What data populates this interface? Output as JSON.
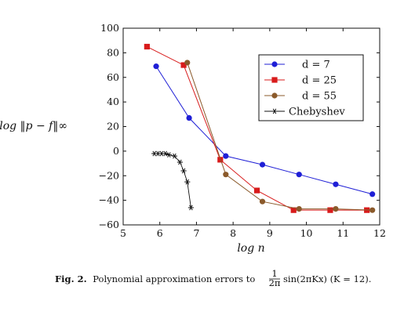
{
  "chart_data": {
    "type": "line",
    "xlabel": "log n",
    "ylabel": "log ‖p − f‖∞",
    "xlim": [
      5,
      12
    ],
    "ylim": [
      -60,
      100
    ],
    "xticks": [
      5,
      6,
      7,
      8,
      9,
      10,
      11,
      12
    ],
    "yticks": [
      -60,
      -40,
      -20,
      0,
      20,
      40,
      60,
      80,
      100
    ],
    "tick_labels_x": [
      "5",
      "6",
      "7",
      "8",
      "9",
      "10",
      "11",
      "12"
    ],
    "tick_labels_y": [
      "−60",
      "−40",
      "−20",
      "0",
      "20",
      "40",
      "60",
      "80",
      "100"
    ],
    "grid": false,
    "legend_position": "top-right",
    "series": [
      {
        "name": "d = 7",
        "color": "#1f1fd6",
        "marker": "circle",
        "x": [
          5.9,
          6.8,
          7.8,
          8.8,
          9.8,
          10.8,
          11.8
        ],
        "y": [
          69,
          27,
          -4,
          -11,
          -19,
          -27,
          -35
        ]
      },
      {
        "name": "d = 25",
        "color": "#d81b1b",
        "marker": "square",
        "x": [
          5.65,
          6.65,
          7.65,
          8.65,
          9.65,
          10.65,
          11.65
        ],
        "y": [
          85,
          70,
          -7,
          -32,
          -48,
          -48,
          -48
        ]
      },
      {
        "name": "d = 55",
        "color": "#8b5a2b",
        "marker": "circle",
        "x": [
          6.75,
          7.8,
          8.8,
          9.8,
          10.8,
          11.8
        ],
        "y": [
          72,
          -19,
          -41,
          -47,
          -47,
          -48
        ]
      },
      {
        "name": "Chebyshev",
        "color": "#111111",
        "marker": "star",
        "x": [
          5.85,
          5.95,
          6.05,
          6.15,
          6.25,
          6.4,
          6.55,
          6.65,
          6.75,
          6.85
        ],
        "y": [
          -2,
          -2,
          -2,
          -2,
          -3,
          -4,
          -9,
          -16,
          -25,
          -46
        ]
      }
    ]
  },
  "caption": {
    "label": "Fig. 2.",
    "text_before": "Polynomial approximation errors to",
    "frac_num": "1",
    "frac_den": "2π",
    "text_after": "sin(2πKx) (K = 12)."
  }
}
